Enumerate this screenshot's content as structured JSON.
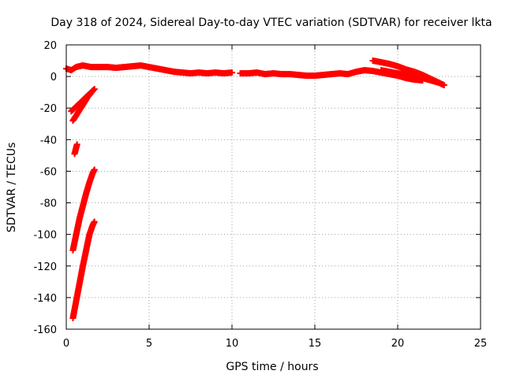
{
  "chart_data": {
    "type": "scatter",
    "title": "Day 318 of 2024, Sidereal Day-to-day VTEC variation (SDTVAR) for receiver lkta",
    "xlabel": "GPS time / hours",
    "ylabel": "SDTVAR / TECUs",
    "xlim": [
      0,
      25
    ],
    "ylim": [
      -160,
      20
    ],
    "xticks": [
      "0",
      "5",
      "10",
      "15",
      "20",
      "25"
    ],
    "yticks": [
      "20",
      "0",
      "-20",
      "-40",
      "-60",
      "-80",
      "-100",
      "-120",
      "-140",
      "-160"
    ],
    "grid": true,
    "legend": "none",
    "series": [
      {
        "color": "#ff0000",
        "marker": "plus",
        "segments": [
          [
            [
              0.0,
              5
            ],
            [
              0.3,
              4
            ],
            [
              0.6,
              6
            ],
            [
              1.0,
              7
            ],
            [
              1.5,
              6
            ],
            [
              2.0,
              6
            ],
            [
              2.5,
              6
            ],
            [
              3.0,
              5.5
            ],
            [
              3.5,
              6
            ],
            [
              4.0,
              6.5
            ],
            [
              4.5,
              7
            ],
            [
              5.0,
              6
            ],
            [
              5.5,
              5
            ],
            [
              6.0,
              4
            ],
            [
              6.5,
              3
            ],
            [
              7.0,
              2.5
            ],
            [
              7.5,
              2
            ],
            [
              8.0,
              2.5
            ],
            [
              8.5,
              2
            ],
            [
              9.0,
              2.5
            ],
            [
              9.5,
              2
            ],
            [
              10.0,
              2.5
            ]
          ],
          [
            [
              10.5,
              2
            ],
            [
              11.0,
              2
            ],
            [
              11.5,
              2.5
            ],
            [
              12.0,
              1.5
            ],
            [
              12.5,
              2
            ],
            [
              13.0,
              1.5
            ],
            [
              13.5,
              1.5
            ],
            [
              14.0,
              1
            ],
            [
              14.5,
              0.5
            ],
            [
              15.0,
              0.5
            ],
            [
              15.5,
              1
            ],
            [
              16.0,
              1.5
            ],
            [
              16.5,
              2
            ],
            [
              17.0,
              1.5
            ],
            [
              17.5,
              3
            ],
            [
              18.0,
              4
            ],
            [
              18.5,
              3.5
            ],
            [
              19.0,
              2.5
            ],
            [
              19.5,
              1.5
            ],
            [
              20.0,
              0.5
            ],
            [
              20.5,
              -1
            ],
            [
              21.0,
              -2
            ],
            [
              21.5,
              -2.5
            ]
          ],
          [
            [
              18.5,
              10
            ],
            [
              19.0,
              9
            ],
            [
              19.5,
              8
            ],
            [
              20.0,
              6.5
            ],
            [
              20.5,
              4.5
            ],
            [
              21.0,
              3
            ],
            [
              21.5,
              1
            ],
            [
              22.0,
              -1.5
            ],
            [
              22.5,
              -4
            ],
            [
              22.8,
              -5.5
            ]
          ],
          [
            [
              19.0,
              4
            ],
            [
              19.5,
              3
            ],
            [
              20.0,
              2
            ],
            [
              20.5,
              1
            ],
            [
              21.0,
              0
            ],
            [
              21.5,
              -1
            ],
            [
              22.0,
              -2.5
            ],
            [
              22.5,
              -4
            ]
          ],
          [
            [
              0.3,
              -22
            ],
            [
              0.6,
              -19
            ],
            [
              0.9,
              -16
            ],
            [
              1.2,
              -13
            ],
            [
              1.5,
              -10
            ],
            [
              1.7,
              -8
            ]
          ],
          [
            [
              0.4,
              -28
            ],
            [
              0.7,
              -23
            ],
            [
              1.0,
              -18
            ],
            [
              1.3,
              -13
            ],
            [
              1.6,
              -9
            ]
          ],
          [
            [
              0.5,
              -49
            ],
            [
              0.55,
              -47
            ],
            [
              0.6,
              -45
            ],
            [
              0.65,
              -43
            ]
          ],
          [
            [
              0.4,
              -110
            ],
            [
              0.6,
              -100
            ],
            [
              0.8,
              -90
            ],
            [
              1.0,
              -82
            ],
            [
              1.2,
              -74
            ],
            [
              1.4,
              -67
            ],
            [
              1.6,
              -61
            ],
            [
              1.7,
              -59
            ]
          ],
          [
            [
              0.4,
              -153
            ],
            [
              0.6,
              -142
            ],
            [
              0.8,
              -131
            ],
            [
              1.0,
              -120
            ],
            [
              1.2,
              -110
            ],
            [
              1.4,
              -100
            ],
            [
              1.6,
              -94
            ],
            [
              1.7,
              -92
            ]
          ]
        ]
      }
    ]
  }
}
